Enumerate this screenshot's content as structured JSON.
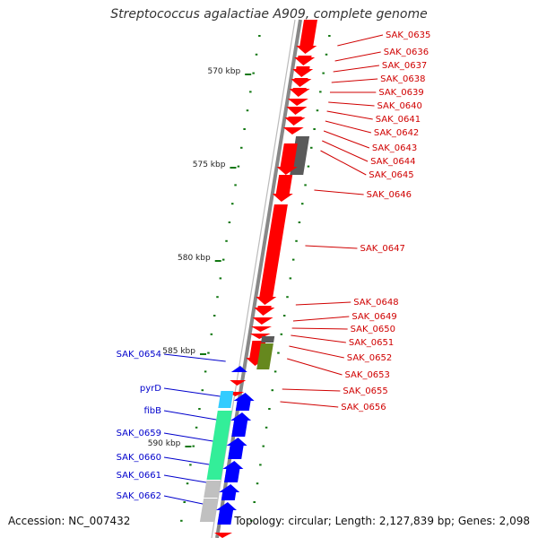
{
  "title": "Streptococcus agalactiae A909, complete genome",
  "footer": {
    "accession": "Accession: NC_007432",
    "summary": "Topology: circular; Length: 2,127,839 bp; Genes: 2,098"
  },
  "colors": {
    "forward": "#ff0000",
    "reverse": "#0000ff",
    "grey": "#5a5a5a",
    "olive": "#66881e",
    "cyan": "#33ccff",
    "mint": "#33ee99",
    "lightgrey": "#c0c0c0",
    "tick": "#117711",
    "backbone": "#888888",
    "fwd_label": "#d00000",
    "rev_label": "#0000cc"
  },
  "scale": {
    "labels": [
      "570 kbp",
      "575 kbp",
      "580 kbp",
      "585 kbp",
      "590 kbp"
    ]
  },
  "forward_genes": [
    {
      "label": "SAK_0635"
    },
    {
      "label": "SAK_0636"
    },
    {
      "label": "SAK_0637"
    },
    {
      "label": "SAK_0638"
    },
    {
      "label": "SAK_0639"
    },
    {
      "label": "SAK_0640"
    },
    {
      "label": "SAK_0641"
    },
    {
      "label": "SAK_0642"
    },
    {
      "label": "SAK_0643"
    },
    {
      "label": "SAK_0644"
    },
    {
      "label": "SAK_0645"
    },
    {
      "label": "SAK_0646"
    },
    {
      "label": "SAK_0647"
    },
    {
      "label": "SAK_0648"
    },
    {
      "label": "SAK_0649"
    },
    {
      "label": "SAK_0650"
    },
    {
      "label": "SAK_0651"
    },
    {
      "label": "SAK_0652"
    },
    {
      "label": "SAK_0653"
    },
    {
      "label": "SAK_0655"
    },
    {
      "label": "SAK_0656"
    }
  ],
  "reverse_genes": [
    {
      "label": "SAK_0654"
    },
    {
      "label": "pyrD"
    },
    {
      "label": "fibB"
    },
    {
      "label": "SAK_0659"
    },
    {
      "label": "SAK_0660"
    },
    {
      "label": "SAK_0661"
    },
    {
      "label": "SAK_0662"
    }
  ]
}
